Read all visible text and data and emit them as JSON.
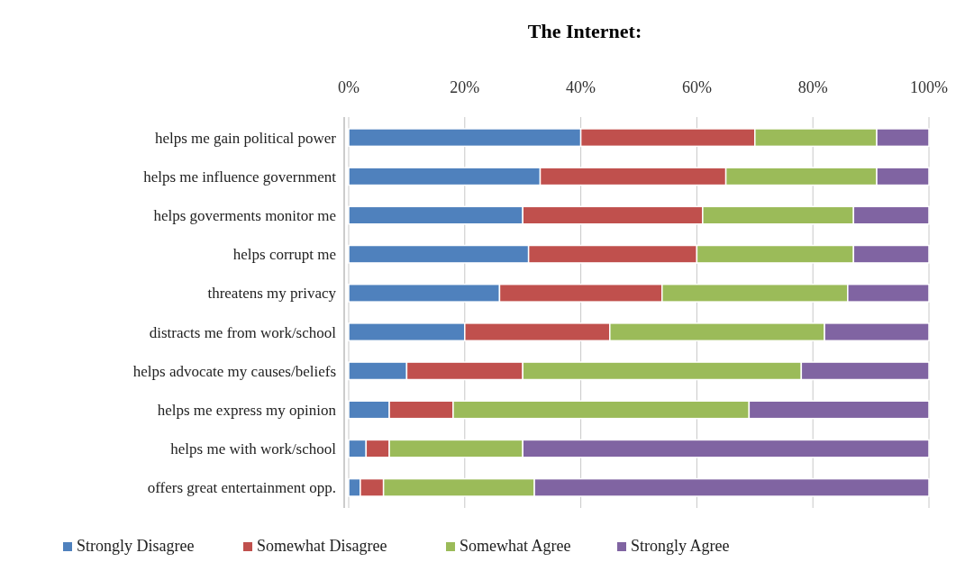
{
  "chart_data": {
    "type": "bar",
    "orientation": "horizontal",
    "stacked": true,
    "title": "The Internet:",
    "categories": [
      "helps me gain political power",
      "helps me influence government",
      "helps goverments monitor me",
      "helps corrupt me",
      "threatens my privacy",
      "distracts me from work/school",
      "helps advocate my causes/beliefs",
      "helps me express my opinion",
      "helps me with work/school",
      "offers great entertainment opp."
    ],
    "series": [
      {
        "name": "Strongly Disagree",
        "color": "#4f81bd",
        "values": [
          40,
          33,
          30,
          31,
          26,
          20,
          10,
          7,
          3,
          2
        ]
      },
      {
        "name": "Somewhat Disagree",
        "color": "#c0504d",
        "values": [
          30,
          32,
          31,
          29,
          28,
          25,
          20,
          11,
          4,
          4
        ]
      },
      {
        "name": "Somewhat Agree",
        "color": "#9bbb59",
        "values": [
          21,
          26,
          26,
          27,
          32,
          37,
          48,
          51,
          23,
          26
        ]
      },
      {
        "name": "Strongly Agree",
        "color": "#8064a2",
        "values": [
          9,
          9,
          13,
          13,
          14,
          18,
          22,
          31,
          70,
          68
        ]
      }
    ],
    "xlim": [
      0,
      100
    ],
    "xticks": [
      {
        "value": 0,
        "label": "0%"
      },
      {
        "value": 20,
        "label": "20%"
      },
      {
        "value": 40,
        "label": "40%"
      },
      {
        "value": 60,
        "label": "60%"
      },
      {
        "value": 80,
        "label": "80%"
      },
      {
        "value": 100,
        "label": "100%"
      }
    ],
    "grid": "x",
    "legend": "bottom"
  }
}
